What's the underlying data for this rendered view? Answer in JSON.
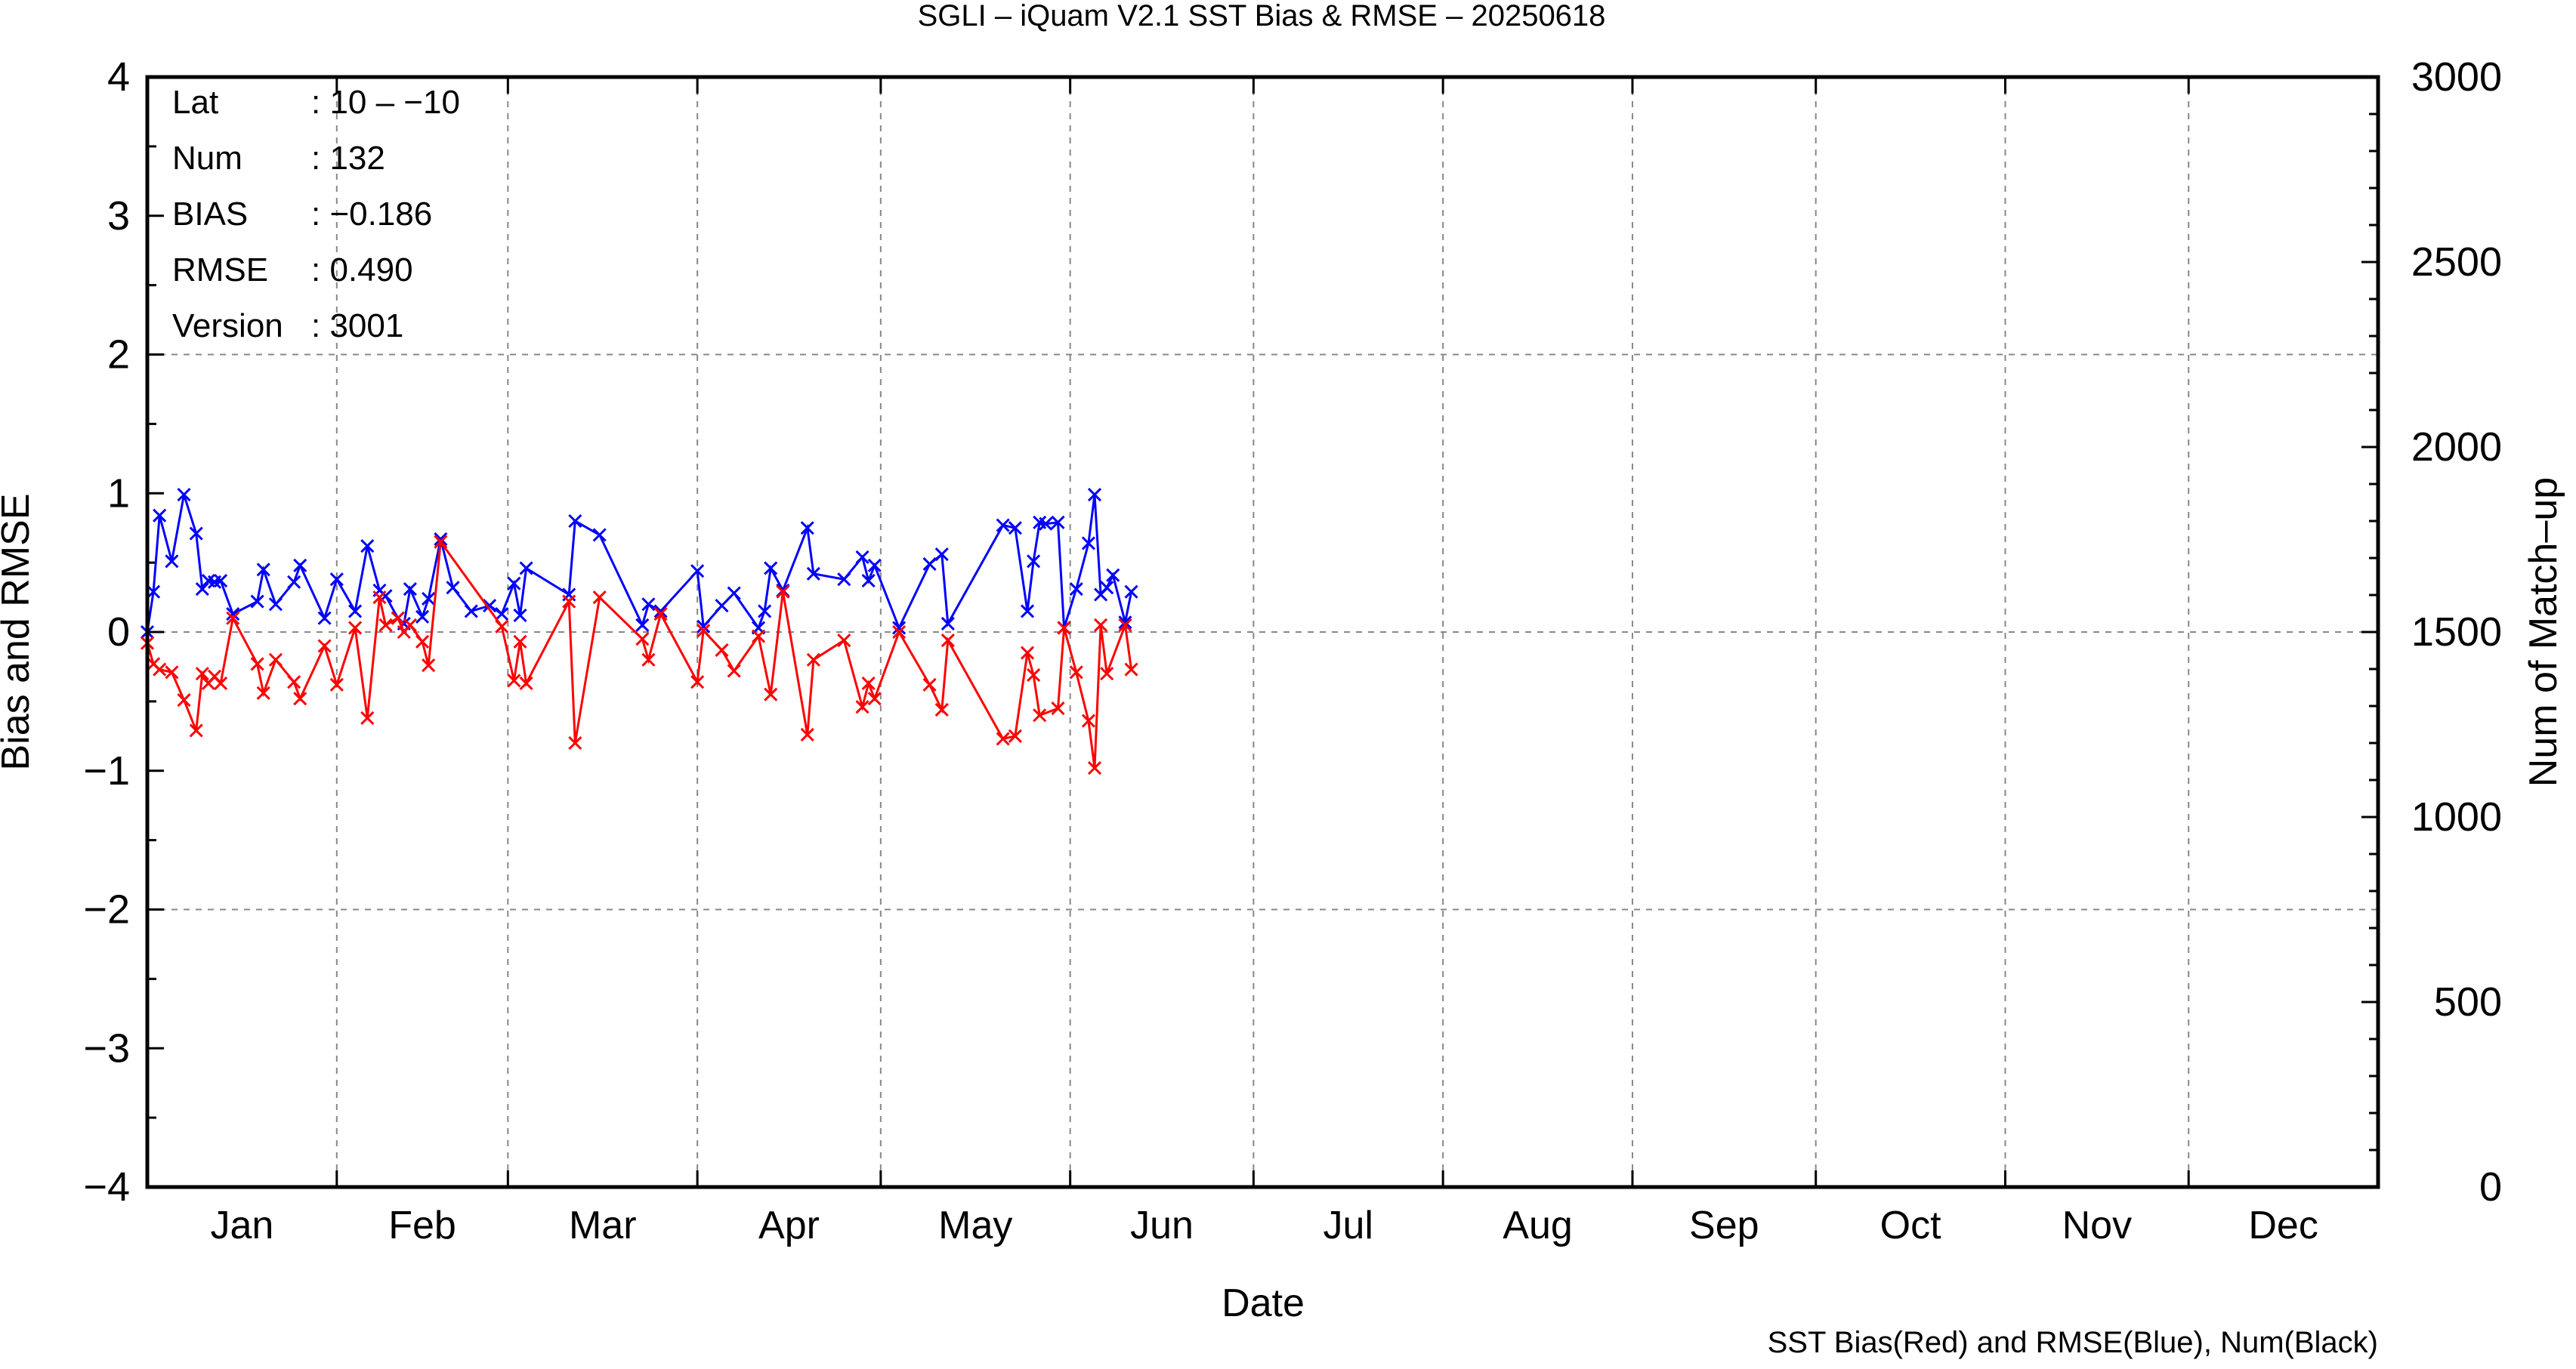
{
  "chart_data": {
    "type": "line",
    "title": "SGLI – iQuam V2.1 SST Bias & RMSE  – 20250618",
    "xlabel": "Date",
    "ylabel": "Bias and RMSE",
    "y2label": "Num of Match–up",
    "footnote": "SST Bias(Red) and RMSE(Blue), Num(Black)",
    "xlim": [
      "2025-01-01",
      "2025-12-31"
    ],
    "ylim": [
      -4,
      4
    ],
    "y2lim": [
      0,
      3000
    ],
    "grid": true,
    "month_labels": [
      "Jan",
      "Feb",
      "Mar",
      "Apr",
      "May",
      "Jun",
      "Jul",
      "Aug",
      "Sep",
      "Oct",
      "Nov",
      "Dec"
    ],
    "yticks": [
      {
        "value": 4,
        "label": "4"
      },
      {
        "value": 3,
        "label": "3"
      },
      {
        "value": 2,
        "label": "2"
      },
      {
        "value": 1,
        "label": "1"
      },
      {
        "value": 0,
        "label": "0"
      },
      {
        "value": -1,
        "label": "−1"
      },
      {
        "value": -2,
        "label": "−2"
      },
      {
        "value": -3,
        "label": "−3"
      },
      {
        "value": -4,
        "label": "−4"
      }
    ],
    "y2ticks": [
      {
        "value": 3000,
        "label": "3000"
      },
      {
        "value": 2500,
        "label": "2500"
      },
      {
        "value": 2000,
        "label": "2000"
      },
      {
        "value": 1500,
        "label": "1500"
      },
      {
        "value": 1000,
        "label": "1000"
      },
      {
        "value": 500,
        "label": "500"
      },
      {
        "value": 0,
        "label": "0"
      }
    ],
    "series": [
      {
        "color": "#0000ff",
        "points": [
          [
            "2025-01-01",
            0.0
          ],
          [
            "2025-01-02",
            0.29
          ],
          [
            "2025-01-03",
            0.84
          ],
          [
            "2025-01-05",
            0.51
          ],
          [
            "2025-01-07",
            0.99
          ],
          [
            "2025-01-09",
            0.71
          ],
          [
            "2025-01-10",
            0.31
          ],
          [
            "2025-01-11",
            0.37
          ],
          [
            "2025-01-12",
            0.36
          ],
          [
            "2025-01-13",
            0.37
          ],
          [
            "2025-01-15",
            0.13
          ],
          [
            "2025-01-19",
            0.22
          ],
          [
            "2025-01-20",
            0.45
          ],
          [
            "2025-01-22",
            0.2
          ],
          [
            "2025-01-25",
            0.36
          ],
          [
            "2025-01-26",
            0.48
          ],
          [
            "2025-01-30",
            0.1
          ],
          [
            "2025-02-01",
            0.38
          ],
          [
            "2025-02-04",
            0.15
          ],
          [
            "2025-02-06",
            0.62
          ],
          [
            "2025-02-08",
            0.3
          ],
          [
            "2025-02-09",
            0.26
          ],
          [
            "2025-02-11",
            0.1
          ],
          [
            "2025-02-12",
            0.06
          ],
          [
            "2025-02-13",
            0.31
          ],
          [
            "2025-02-15",
            0.11
          ],
          [
            "2025-02-16",
            0.24
          ],
          [
            "2025-02-18",
            0.67
          ],
          [
            "2025-02-20",
            0.32
          ],
          [
            "2025-02-23",
            0.15
          ],
          [
            "2025-02-26",
            0.19
          ],
          [
            "2025-02-28",
            0.13
          ],
          [
            "2025-03-02",
            0.35
          ],
          [
            "2025-03-03",
            0.12
          ],
          [
            "2025-03-04",
            0.46
          ],
          [
            "2025-03-11",
            0.27
          ],
          [
            "2025-03-12",
            0.8
          ],
          [
            "2025-03-16",
            0.7
          ],
          [
            "2025-03-23",
            0.05
          ],
          [
            "2025-03-24",
            0.2
          ],
          [
            "2025-03-26",
            0.15
          ],
          [
            "2025-04-01",
            0.44
          ],
          [
            "2025-04-02",
            0.04
          ],
          [
            "2025-04-05",
            0.19
          ],
          [
            "2025-04-07",
            0.28
          ],
          [
            "2025-04-11",
            0.03
          ],
          [
            "2025-04-12",
            0.15
          ],
          [
            "2025-04-13",
            0.46
          ],
          [
            "2025-04-15",
            0.3
          ],
          [
            "2025-04-19",
            0.75
          ],
          [
            "2025-04-20",
            0.42
          ],
          [
            "2025-04-25",
            0.38
          ],
          [
            "2025-04-28",
            0.54
          ],
          [
            "2025-04-29",
            0.37
          ],
          [
            "2025-04-30",
            0.48
          ],
          [
            "2025-05-04",
            0.03
          ],
          [
            "2025-05-09",
            0.49
          ],
          [
            "2025-05-11",
            0.56
          ],
          [
            "2025-05-12",
            0.06
          ],
          [
            "2025-05-21",
            0.77
          ],
          [
            "2025-05-23",
            0.75
          ],
          [
            "2025-05-25",
            0.15
          ],
          [
            "2025-05-26",
            0.51
          ],
          [
            "2025-05-27",
            0.79
          ],
          [
            "2025-05-28",
            0.78
          ],
          [
            "2025-05-30",
            0.79
          ],
          [
            "2025-05-31",
            0.03
          ],
          [
            "2025-06-02",
            0.31
          ],
          [
            "2025-06-04",
            0.64
          ],
          [
            "2025-06-05",
            0.99
          ],
          [
            "2025-06-06",
            0.27
          ],
          [
            "2025-06-07",
            0.32
          ],
          [
            "2025-06-08",
            0.41
          ],
          [
            "2025-06-10",
            0.07
          ],
          [
            "2025-06-11",
            0.29
          ]
        ]
      },
      {
        "color": "#ff0000",
        "points": [
          [
            "2025-01-01",
            -0.08
          ],
          [
            "2025-01-02",
            -0.23
          ],
          [
            "2025-01-03",
            -0.27
          ],
          [
            "2025-01-05",
            -0.29
          ],
          [
            "2025-01-07",
            -0.49
          ],
          [
            "2025-01-09",
            -0.71
          ],
          [
            "2025-01-10",
            -0.3
          ],
          [
            "2025-01-11",
            -0.37
          ],
          [
            "2025-01-12",
            -0.32
          ],
          [
            "2025-01-13",
            -0.37
          ],
          [
            "2025-01-15",
            0.1
          ],
          [
            "2025-01-19",
            -0.23
          ],
          [
            "2025-01-20",
            -0.44
          ],
          [
            "2025-01-22",
            -0.2
          ],
          [
            "2025-01-25",
            -0.36
          ],
          [
            "2025-01-26",
            -0.48
          ],
          [
            "2025-01-30",
            -0.1
          ],
          [
            "2025-02-01",
            -0.38
          ],
          [
            "2025-02-04",
            0.03
          ],
          [
            "2025-02-06",
            -0.62
          ],
          [
            "2025-02-08",
            0.25
          ],
          [
            "2025-02-09",
            0.05
          ],
          [
            "2025-02-11",
            0.1
          ],
          [
            "2025-02-12",
            0.0
          ],
          [
            "2025-02-13",
            0.05
          ],
          [
            "2025-02-15",
            -0.07
          ],
          [
            "2025-02-16",
            -0.24
          ],
          [
            "2025-02-18",
            0.65
          ],
          [
            "2025-02-28",
            0.04
          ],
          [
            "2025-03-02",
            -0.35
          ],
          [
            "2025-03-03",
            -0.07
          ],
          [
            "2025-03-04",
            -0.37
          ],
          [
            "2025-03-11",
            0.22
          ],
          [
            "2025-03-12",
            -0.8
          ],
          [
            "2025-03-16",
            0.25
          ],
          [
            "2025-03-23",
            -0.05
          ],
          [
            "2025-03-24",
            -0.2
          ],
          [
            "2025-03-26",
            0.13
          ],
          [
            "2025-04-01",
            -0.36
          ],
          [
            "2025-04-02",
            0.01
          ],
          [
            "2025-04-05",
            -0.13
          ],
          [
            "2025-04-07",
            -0.28
          ],
          [
            "2025-04-11",
            -0.03
          ],
          [
            "2025-04-13",
            -0.45
          ],
          [
            "2025-04-15",
            0.29
          ],
          [
            "2025-04-19",
            -0.74
          ],
          [
            "2025-04-20",
            -0.2
          ],
          [
            "2025-04-25",
            -0.06
          ],
          [
            "2025-04-28",
            -0.54
          ],
          [
            "2025-04-29",
            -0.37
          ],
          [
            "2025-04-30",
            -0.48
          ],
          [
            "2025-05-04",
            0.0
          ],
          [
            "2025-05-09",
            -0.38
          ],
          [
            "2025-05-11",
            -0.56
          ],
          [
            "2025-05-12",
            -0.06
          ],
          [
            "2025-05-21",
            -0.77
          ],
          [
            "2025-05-23",
            -0.75
          ],
          [
            "2025-05-25",
            -0.15
          ],
          [
            "2025-05-26",
            -0.31
          ],
          [
            "2025-05-27",
            -0.6
          ],
          [
            "2025-05-30",
            -0.55
          ],
          [
            "2025-05-31",
            0.03
          ],
          [
            "2025-06-02",
            -0.29
          ],
          [
            "2025-06-04",
            -0.64
          ],
          [
            "2025-06-05",
            -0.98
          ],
          [
            "2025-06-06",
            0.05
          ],
          [
            "2025-06-07",
            -0.3
          ],
          [
            "2025-06-10",
            0.05
          ],
          [
            "2025-06-11",
            -0.27
          ]
        ]
      }
    ]
  },
  "stats": {
    "lat_label": "Lat",
    "lat_value": ": 10 – −10",
    "num_label": "Num",
    "num_value": ": 132",
    "bias_label": "BIAS",
    "bias_value": ": −0.186",
    "rmse_label": "RMSE",
    "rmse_value": ": 0.490",
    "version_label": "Version",
    "version_value": ": 3001"
  }
}
